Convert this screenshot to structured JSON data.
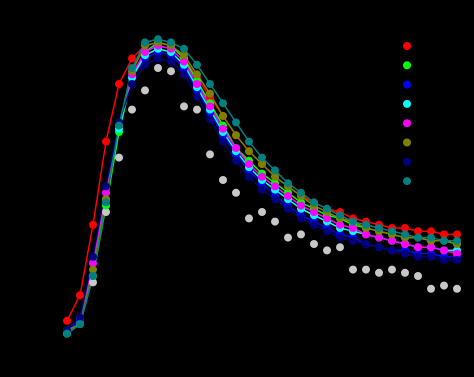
{
  "chart_data": {
    "type": "line",
    "background": "#000000",
    "legend_position": "upper right",
    "x": [
      0,
      1,
      2,
      3,
      4,
      5,
      6,
      7,
      8,
      9,
      10,
      11,
      12,
      13,
      14,
      15,
      16,
      17,
      18,
      19,
      20,
      21,
      22,
      23,
      24,
      25,
      26,
      27,
      28,
      29,
      30
    ],
    "xlim": [
      0,
      30
    ],
    "ylim": [
      0,
      1
    ],
    "series": [
      {
        "color": "#ff0000",
        "style": "line+markers",
        "legend": true,
        "values": [
          0.06,
          0.14,
          0.36,
          0.62,
          0.8,
          0.88,
          0.92,
          0.93,
          0.92,
          0.88,
          0.82,
          0.76,
          0.7,
          0.64,
          0.59,
          0.55,
          0.51,
          0.48,
          0.45,
          0.43,
          0.41,
          0.4,
          0.38,
          0.37,
          0.36,
          0.35,
          0.35,
          0.34,
          0.34,
          0.33,
          0.33
        ]
      },
      {
        "color": "#00ff00",
        "style": "line+markers",
        "legend": true,
        "values": [
          0.02,
          0.05,
          0.2,
          0.42,
          0.65,
          0.82,
          0.9,
          0.93,
          0.92,
          0.88,
          0.81,
          0.74,
          0.67,
          0.6,
          0.56,
          0.52,
          0.49,
          0.46,
          0.43,
          0.41,
          0.39,
          0.38,
          0.36,
          0.35,
          0.34,
          0.33,
          0.32,
          0.32,
          0.31,
          0.31,
          0.3
        ]
      },
      {
        "color": "#0000ff",
        "style": "line+markers",
        "legend": true,
        "values": [
          0.03,
          0.06,
          0.24,
          0.46,
          0.68,
          0.82,
          0.88,
          0.9,
          0.89,
          0.85,
          0.78,
          0.71,
          0.64,
          0.58,
          0.53,
          0.49,
          0.45,
          0.42,
          0.39,
          0.37,
          0.35,
          0.33,
          0.32,
          0.3,
          0.29,
          0.28,
          0.28,
          0.27,
          0.27,
          0.26,
          0.26
        ]
      },
      {
        "color": "#00ffff",
        "style": "line+markers",
        "legend": true,
        "values": [
          0.02,
          0.05,
          0.2,
          0.44,
          0.66,
          0.82,
          0.89,
          0.91,
          0.9,
          0.86,
          0.79,
          0.72,
          0.65,
          0.59,
          0.54,
          0.5,
          0.47,
          0.44,
          0.41,
          0.39,
          0.37,
          0.35,
          0.34,
          0.33,
          0.32,
          0.31,
          0.3,
          0.29,
          0.29,
          0.28,
          0.28
        ]
      },
      {
        "color": "#ff00ff",
        "style": "line+markers",
        "legend": true,
        "values": [
          0.03,
          0.07,
          0.24,
          0.46,
          0.67,
          0.83,
          0.9,
          0.92,
          0.91,
          0.87,
          0.8,
          0.73,
          0.66,
          0.6,
          0.55,
          0.51,
          0.48,
          0.45,
          0.42,
          0.4,
          0.38,
          0.36,
          0.35,
          0.33,
          0.32,
          0.31,
          0.3,
          0.29,
          0.29,
          0.28,
          0.27
        ]
      },
      {
        "color": "#808000",
        "style": "line+markers",
        "legend": true,
        "values": [
          0.03,
          0.05,
          0.22,
          0.44,
          0.67,
          0.84,
          0.92,
          0.93,
          0.92,
          0.89,
          0.83,
          0.77,
          0.7,
          0.64,
          0.59,
          0.55,
          0.51,
          0.48,
          0.45,
          0.42,
          0.4,
          0.38,
          0.37,
          0.35,
          0.34,
          0.33,
          0.32,
          0.32,
          0.31,
          0.31,
          0.3
        ]
      },
      {
        "color": "#000080",
        "style": "line+markers",
        "legend": true,
        "values": [
          0.03,
          0.07,
          0.26,
          0.48,
          0.68,
          0.8,
          0.86,
          0.88,
          0.87,
          0.83,
          0.76,
          0.69,
          0.62,
          0.56,
          0.51,
          0.47,
          0.44,
          0.41,
          0.38,
          0.36,
          0.34,
          0.32,
          0.31,
          0.3,
          0.29,
          0.28,
          0.27,
          0.26,
          0.26,
          0.25,
          0.25
        ]
      },
      {
        "color": "#008080",
        "style": "line+markers",
        "legend": true,
        "values": [
          0.02,
          0.05,
          0.2,
          0.43,
          0.67,
          0.85,
          0.93,
          0.94,
          0.93,
          0.91,
          0.86,
          0.8,
          0.74,
          0.68,
          0.62,
          0.57,
          0.53,
          0.49,
          0.46,
          0.43,
          0.41,
          0.39,
          0.37,
          0.36,
          0.35,
          0.34,
          0.33,
          0.32,
          0.32,
          0.31,
          0.31
        ]
      },
      {
        "color": "#c8c8c8",
        "style": "markers",
        "legend": false,
        "values": [
          0.02,
          0.06,
          0.18,
          0.4,
          0.57,
          0.72,
          0.78,
          0.85,
          0.84,
          0.73,
          0.72,
          0.58,
          0.5,
          0.46,
          0.38,
          0.4,
          0.37,
          0.32,
          0.33,
          0.3,
          0.28,
          0.29,
          0.22,
          0.22,
          0.21,
          0.22,
          0.21,
          0.2,
          0.16,
          0.17,
          0.16
        ]
      }
    ]
  }
}
